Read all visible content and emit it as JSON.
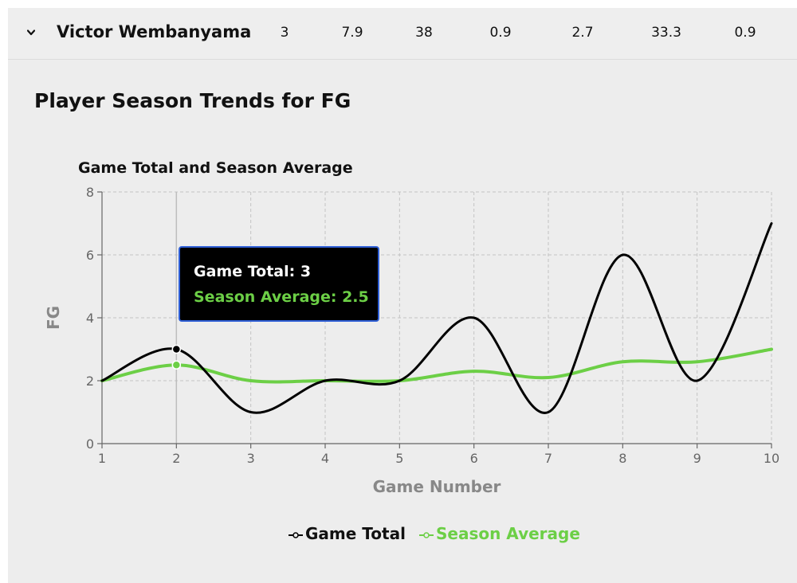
{
  "row": {
    "player": "Victor Wembanyama",
    "stats": [
      "3",
      "7.9",
      "38",
      "0.9",
      "2.7",
      "33.3",
      "0.9"
    ]
  },
  "section_title": "Player Season Trends for FG",
  "tooltip": {
    "game_total": "Game Total: 3",
    "season_average": "Season Average: 2.5"
  },
  "colors": {
    "game_total": "#000000",
    "season_average": "#6ccf46",
    "tooltip_border": "#2f5fd6",
    "panel_bg": "#ededed"
  },
  "chart_data": {
    "type": "line",
    "title": "Game Total and Season Average",
    "xlabel": "Game Number",
    "ylabel": "FG",
    "x": [
      1,
      2,
      3,
      4,
      5,
      6,
      7,
      8,
      9,
      10
    ],
    "xlim": [
      1,
      10
    ],
    "ylim": [
      0,
      8
    ],
    "xticks": [
      "1",
      "2",
      "3",
      "4",
      "5",
      "6",
      "7",
      "8",
      "9",
      "10"
    ],
    "yticks": [
      "0",
      "2",
      "4",
      "6",
      "8"
    ],
    "grid": true,
    "legend": "bottom",
    "series": [
      {
        "name": "Game Total",
        "color": "#000000",
        "values": [
          2,
          3,
          1,
          2,
          2,
          4,
          1,
          6,
          2,
          7
        ]
      },
      {
        "name": "Season Average",
        "color": "#6ccf46",
        "values": [
          2,
          2.5,
          2,
          2,
          2,
          2.3,
          2.1,
          2.6,
          2.6,
          3
        ]
      }
    ],
    "highlight_x": 2
  }
}
